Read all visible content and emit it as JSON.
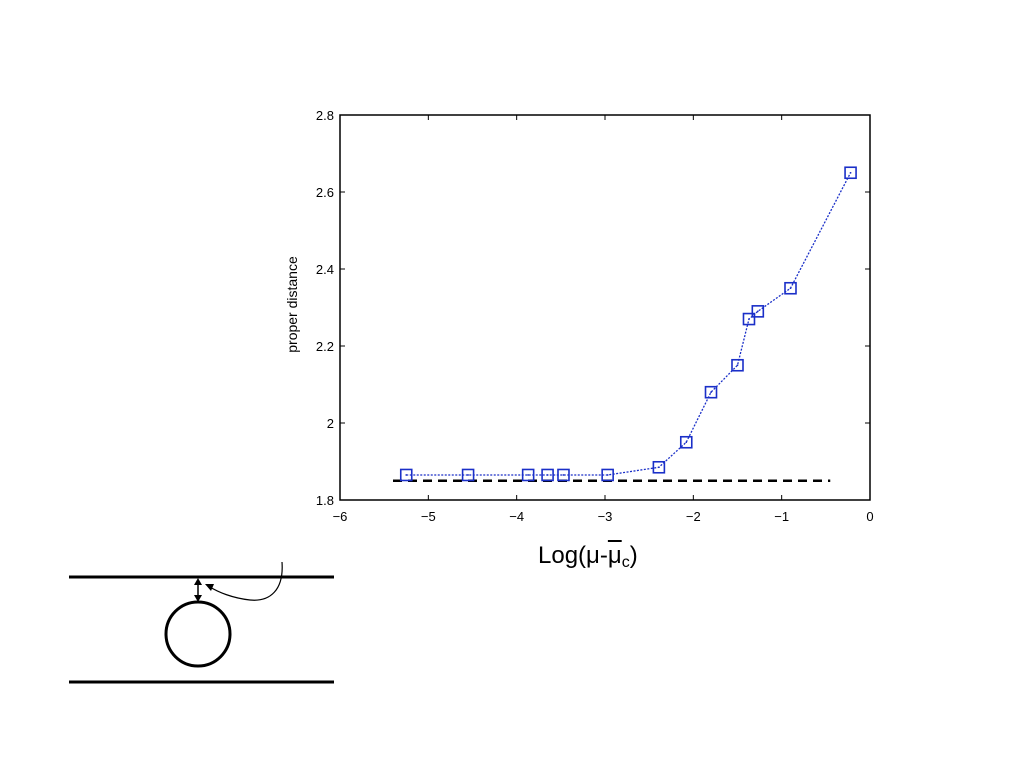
{
  "chart_data": {
    "type": "line",
    "title": "",
    "xlabel": {
      "prefix": "Log(",
      "mu": "μ",
      "dash": "-",
      "mu_c": "μ",
      "sub": "c",
      "suffix": ")"
    },
    "ylabel": "proper distance",
    "xlim": [
      -6,
      0
    ],
    "ylim": [
      1.8,
      2.8
    ],
    "x_ticks": [
      -6,
      -5,
      -4,
      -3,
      -2,
      -1,
      0
    ],
    "x_tick_labels": [
      "−6",
      "−5",
      "−4",
      "−3",
      "−2",
      "−1",
      "0"
    ],
    "y_ticks": [
      1.8,
      2.0,
      2.2,
      2.4,
      2.6,
      2.8
    ],
    "y_tick_labels": [
      "1.8",
      "2",
      "2.2",
      "2.4",
      "2.6",
      "2.8"
    ],
    "grid": false,
    "series": [
      {
        "marker": "square",
        "color": "#1a2fc8",
        "x": [
          -5.25,
          -4.55,
          -3.87,
          -3.65,
          -3.47,
          -2.97,
          -2.39,
          -2.08,
          -1.8,
          -1.5,
          -1.37,
          -1.27,
          -0.9,
          -0.22
        ],
        "y": [
          1.865,
          1.865,
          1.865,
          1.865,
          1.865,
          1.865,
          1.885,
          1.95,
          2.08,
          2.15,
          2.27,
          2.29,
          2.35,
          2.65
        ]
      }
    ],
    "reference_line": {
      "y": 1.85,
      "x_range": [
        -5.4,
        -0.45
      ],
      "style": "dashed",
      "color": "#000000"
    }
  },
  "diagram": {
    "colors": {
      "stroke": "#000000"
    }
  }
}
